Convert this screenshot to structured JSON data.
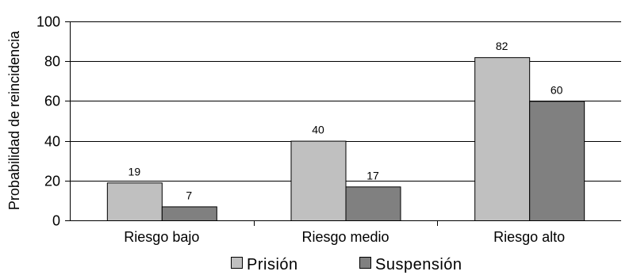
{
  "chart_data": {
    "type": "bar",
    "ylabel": "Probabilidad de reincidencia",
    "xlabel": "",
    "ylim": [
      0,
      100
    ],
    "yticks": [
      0,
      20,
      40,
      60,
      80,
      100
    ],
    "grid": true,
    "legend_position": "bottom",
    "categories": [
      "Riesgo bajo",
      "Riesgo medio",
      "Riesgo alto"
    ],
    "series": [
      {
        "name": "Prisión",
        "values": [
          19,
          40,
          82
        ],
        "color": "#c0c0c0"
      },
      {
        "name": "Suspensión",
        "values": [
          7,
          17,
          60
        ],
        "color": "#808080"
      }
    ]
  }
}
